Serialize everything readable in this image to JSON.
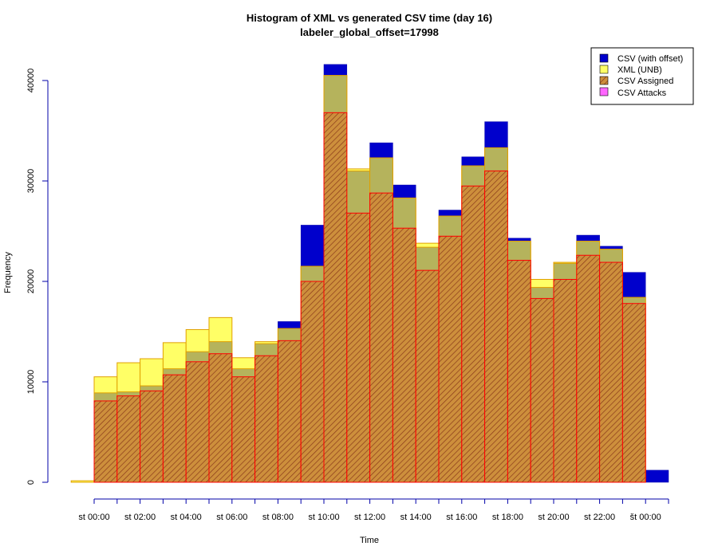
{
  "chart_data": {
    "type": "bar",
    "title": "Histogram of XML vs generated CSV time (day 16)",
    "subtitle": "labeler_global_offset=17998",
    "xlabel": "Time",
    "ylabel": "Frequency",
    "ylim": [
      0,
      42000
    ],
    "y_ticks": [
      0,
      10000,
      20000,
      30000,
      40000
    ],
    "x_tick_labels": [
      "st 00:00",
      "st 02:00",
      "st 04:00",
      "st 06:00",
      "st 08:00",
      "st 10:00",
      "st 12:00",
      "st 14:00",
      "st 16:00",
      "st 18:00",
      "st 20:00",
      "st 22:00",
      "št 00:00"
    ],
    "bin_hours": [
      -1,
      0,
      1,
      2,
      3,
      4,
      5,
      6,
      7,
      8,
      9,
      10,
      11,
      12,
      13,
      14,
      15,
      16,
      17,
      18,
      19,
      20,
      21,
      22,
      23,
      24
    ],
    "colors": {
      "csv_offset": "#0000cc",
      "xml": "#ffff66",
      "overlap": "#b5b35c",
      "assigned_fill": "#cd8f3c",
      "assigned_line": "#ff0000",
      "attacks": "#ff66ff",
      "axis": "#0000aa"
    },
    "series": [
      {
        "name": "CSV (with offset)",
        "values": [
          0,
          8900,
          9000,
          9600,
          11300,
          13000,
          14000,
          11300,
          13800,
          16000,
          25600,
          41600,
          31000,
          33800,
          29600,
          23400,
          27100,
          32400,
          35900,
          24300,
          19400,
          21800,
          24600,
          23500,
          20900,
          1200
        ]
      },
      {
        "name": "XML (UNB)",
        "values": [
          150,
          10500,
          11900,
          12300,
          13900,
          15200,
          16400,
          12400,
          14000,
          15300,
          21500,
          40500,
          31200,
          32300,
          28300,
          23800,
          26500,
          31500,
          33300,
          24000,
          20200,
          21900,
          24000,
          23200,
          18400,
          0
        ]
      },
      {
        "name": "CSV Assigned",
        "values": [
          0,
          8100,
          8600,
          9100,
          10700,
          12000,
          12800,
          10500,
          12600,
          14100,
          20000,
          36800,
          26800,
          28800,
          25300,
          21100,
          24500,
          29500,
          31000,
          22100,
          18300,
          20200,
          22600,
          21900,
          17800,
          0
        ]
      },
      {
        "name": "CSV Attacks",
        "values": [
          0,
          0,
          0,
          0,
          0,
          0,
          0,
          0,
          0,
          0,
          0,
          0,
          0,
          0,
          0,
          0,
          0,
          0,
          0,
          0,
          0,
          0,
          0,
          0,
          0,
          0
        ]
      }
    ],
    "legend": [
      "CSV (with offset)",
      "XML (UNB)",
      "CSV Assigned",
      "CSV Attacks"
    ],
    "legend_position": "top-right"
  }
}
